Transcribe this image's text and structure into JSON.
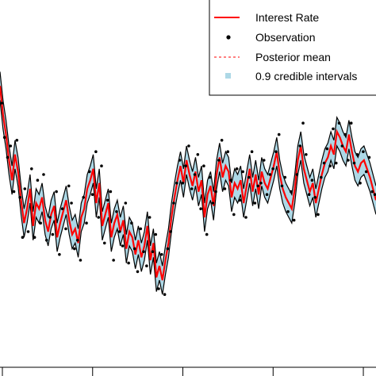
{
  "chart_data": {
    "type": "line",
    "title": "",
    "xlabel": "",
    "ylabel": "",
    "grid": false,
    "legend_position": "top-right",
    "x_range": [
      0,
      1000
    ],
    "y_range": [
      0,
      1
    ],
    "x_ticks": [
      0,
      250,
      500,
      750,
      1000
    ],
    "series": [
      {
        "name": "Interest Rate",
        "kind": "line",
        "color": "#ff0000",
        "x": [
          0,
          8,
          16,
          24,
          32,
          40,
          48,
          56,
          64,
          72,
          80,
          88,
          96,
          104,
          112,
          120,
          128,
          136,
          144,
          152,
          160,
          168,
          176,
          184,
          192,
          200,
          208,
          216,
          224,
          232,
          240,
          248,
          256,
          264,
          272,
          280,
          288,
          296,
          304,
          312,
          320,
          328,
          336,
          344,
          352,
          360,
          368,
          376,
          384,
          392,
          400,
          408,
          416,
          424,
          432,
          440,
          448,
          456,
          464,
          472,
          480,
          488,
          496,
          504,
          512,
          520,
          528,
          536,
          544,
          552,
          560,
          568,
          576,
          584,
          592,
          600,
          608,
          616,
          624,
          632,
          640,
          648,
          656,
          664,
          672,
          680,
          688,
          696,
          704,
          712,
          720,
          728,
          736,
          744,
          752,
          760,
          768,
          776,
          784,
          792,
          800,
          808,
          816,
          824,
          832,
          840,
          848,
          856,
          864,
          872,
          880,
          888,
          896,
          904,
          912,
          920,
          928,
          936,
          944,
          952,
          960,
          968,
          976,
          984,
          992,
          1000
        ],
        "values": [
          0.81,
          0.71,
          0.64,
          0.55,
          0.48,
          0.57,
          0.51,
          0.41,
          0.33,
          0.38,
          0.45,
          0.32,
          0.4,
          0.38,
          0.42,
          0.34,
          0.3,
          0.36,
          0.39,
          0.28,
          0.33,
          0.37,
          0.41,
          0.34,
          0.29,
          0.31,
          0.26,
          0.35,
          0.38,
          0.45,
          0.48,
          0.52,
          0.4,
          0.47,
          0.32,
          0.36,
          0.4,
          0.28,
          0.33,
          0.36,
          0.3,
          0.34,
          0.24,
          0.3,
          0.28,
          0.22,
          0.27,
          0.21,
          0.25,
          0.32,
          0.2,
          0.26,
          0.14,
          0.18,
          0.13,
          0.2,
          0.26,
          0.35,
          0.42,
          0.48,
          0.53,
          0.47,
          0.55,
          0.5,
          0.46,
          0.51,
          0.44,
          0.48,
          0.35,
          0.43,
          0.46,
          0.39,
          0.5,
          0.56,
          0.49,
          0.53,
          0.51,
          0.42,
          0.47,
          0.45,
          0.48,
          0.4,
          0.46,
          0.52,
          0.44,
          0.5,
          0.43,
          0.51,
          0.47,
          0.45,
          0.49,
          0.53,
          0.58,
          0.5,
          0.45,
          0.42,
          0.4,
          0.38,
          0.45,
          0.55,
          0.6,
          0.52,
          0.48,
          0.44,
          0.47,
          0.4,
          0.45,
          0.5,
          0.54,
          0.56,
          0.6,
          0.57,
          0.65,
          0.63,
          0.6,
          0.58,
          0.64,
          0.58,
          0.53,
          0.51,
          0.54,
          0.55,
          0.52,
          0.49,
          0.45,
          0.41
        ]
      },
      {
        "name": "Observation",
        "kind": "points",
        "color": "#000000",
        "x": [
          5,
          12,
          20,
          28,
          37,
          45,
          53,
          60,
          66,
          75,
          84,
          92,
          100,
          108,
          116,
          124,
          133,
          140,
          150,
          158,
          166,
          175,
          183,
          190,
          198,
          206,
          214,
          222,
          230,
          238,
          246,
          255,
          262,
          270,
          278,
          286,
          294,
          302,
          310,
          318,
          326,
          334,
          342,
          350,
          358,
          366,
          374,
          382,
          390,
          398,
          406,
          414,
          422,
          430,
          438,
          446,
          454,
          462,
          470,
          478,
          486,
          494,
          502,
          510,
          518,
          526,
          534,
          542,
          550,
          558,
          566,
          574,
          582,
          590,
          598,
          606,
          614,
          622,
          630,
          638,
          646,
          654,
          662,
          670,
          678,
          686,
          694,
          702,
          710,
          718,
          726,
          734,
          742,
          750,
          758,
          766,
          774,
          782,
          790,
          798,
          806,
          814,
          822,
          830,
          838,
          846,
          854,
          862,
          870,
          878,
          886,
          894,
          902,
          910,
          918,
          926,
          934,
          942,
          950,
          958,
          966,
          974,
          982,
          990,
          997
        ],
        "values": [
          0.75,
          0.63,
          0.56,
          0.6,
          0.44,
          0.62,
          0.42,
          0.28,
          0.45,
          0.3,
          0.52,
          0.28,
          0.48,
          0.33,
          0.5,
          0.27,
          0.35,
          0.29,
          0.44,
          0.22,
          0.38,
          0.31,
          0.46,
          0.4,
          0.24,
          0.27,
          0.2,
          0.42,
          0.33,
          0.51,
          0.43,
          0.58,
          0.35,
          0.53,
          0.26,
          0.41,
          0.44,
          0.2,
          0.37,
          0.3,
          0.25,
          0.4,
          0.19,
          0.33,
          0.24,
          0.16,
          0.31,
          0.23,
          0.18,
          0.35,
          0.23,
          0.29,
          0.1,
          0.22,
          0.08,
          0.24,
          0.3,
          0.4,
          0.47,
          0.55,
          0.47,
          0.53,
          0.6,
          0.45,
          0.5,
          0.57,
          0.38,
          0.53,
          0.29,
          0.49,
          0.4,
          0.44,
          0.55,
          0.62,
          0.45,
          0.58,
          0.48,
          0.36,
          0.52,
          0.41,
          0.51,
          0.35,
          0.49,
          0.58,
          0.4,
          0.46,
          0.47,
          0.55,
          0.43,
          0.5,
          0.52,
          0.58,
          0.64,
          0.46,
          0.49,
          0.37,
          0.44,
          0.34,
          0.5,
          0.6,
          0.68,
          0.57,
          0.43,
          0.48,
          0.42,
          0.36,
          0.49,
          0.54,
          0.59,
          0.53,
          0.66,
          0.54,
          0.68,
          0.6,
          0.64,
          0.55,
          0.68,
          0.54,
          0.57,
          0.47,
          0.58,
          0.51,
          0.56,
          0.44,
          0.43
        ]
      },
      {
        "name": "Posterior mean",
        "kind": "dashed-line",
        "color": "#ff0000"
      },
      {
        "name": "0.9 credible intervals",
        "kind": "band",
        "color": "#add8e6",
        "half_width": 0.05
      }
    ]
  },
  "legend": {
    "items": [
      {
        "label": "Interest Rate",
        "symbol": "line",
        "color": "#ff0000"
      },
      {
        "label": "Observation",
        "symbol": "dot",
        "color": "#000000"
      },
      {
        "label": "Posterior mean",
        "symbol": "dash",
        "color": "#ff0000"
      },
      {
        "label": "0.9 credible intervals",
        "symbol": "square",
        "color": "#add8e6"
      }
    ]
  }
}
